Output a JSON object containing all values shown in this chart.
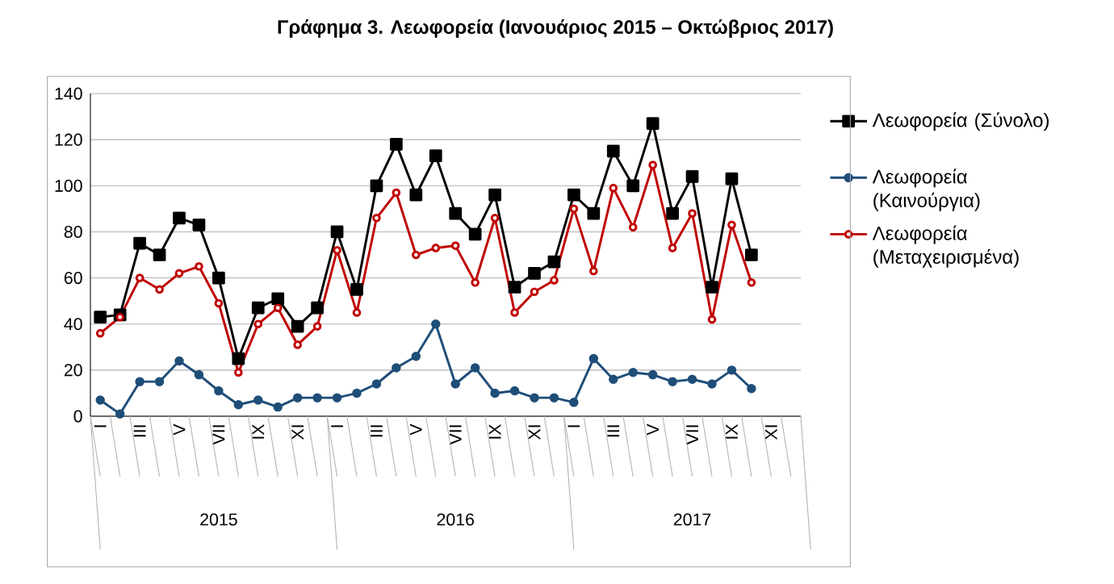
{
  "chart_data": {
    "type": "line",
    "title": "Γράφημα 3. Λεωφορεία (Ιανουάριος 2015 – Οκτώβριος 2017)",
    "categories": [
      "I",
      null,
      "III",
      null,
      "V",
      null,
      "VII",
      null,
      "IX",
      null,
      "XI",
      null,
      "I",
      null,
      "III",
      null,
      "V",
      null,
      "VII",
      null,
      "IX",
      null,
      "XI",
      null,
      "I",
      null,
      "III",
      null,
      "V",
      null,
      "VII",
      null,
      "IX",
      null,
      "XI",
      null
    ],
    "annotations": [
      "2015",
      "2016",
      "2017"
    ],
    "series": [
      {
        "name": "Λεωφορεία (Σύνολο)",
        "color": "#000000",
        "marker": "square",
        "values": [
          43,
          44,
          75,
          70,
          86,
          83,
          60,
          25,
          47,
          51,
          39,
          47,
          80,
          55,
          100,
          118,
          96,
          113,
          88,
          79,
          96,
          56,
          62,
          67,
          96,
          88,
          115,
          100,
          127,
          88,
          104,
          56,
          103,
          70,
          null,
          null
        ]
      },
      {
        "name": "Λεωφορεία (Καινούργια)",
        "color": "#1f4e79",
        "marker": "circle",
        "values": [
          7,
          1,
          15,
          15,
          24,
          18,
          11,
          5,
          7,
          4,
          8,
          8,
          8,
          10,
          14,
          21,
          26,
          40,
          14,
          21,
          10,
          11,
          8,
          8,
          6,
          25,
          16,
          19,
          18,
          15,
          16,
          14,
          20,
          12,
          null,
          null
        ]
      },
      {
        "name": "Λεωφορεία (Μεταχειρισμένα)",
        "color": "#c00000",
        "marker": "circle_open",
        "values": [
          36,
          43,
          60,
          55,
          62,
          65,
          49,
          19,
          40,
          47,
          31,
          39,
          72,
          45,
          86,
          97,
          70,
          73,
          74,
          58,
          86,
          45,
          54,
          59,
          90,
          63,
          99,
          82,
          109,
          73,
          88,
          42,
          83,
          58,
          null,
          null
        ]
      }
    ],
    "ylim": [
      0,
      140
    ],
    "yticks": [
      0,
      20,
      40,
      60,
      80,
      100,
      120,
      140
    ],
    "grid": "y",
    "legend": "right",
    "line_style": "solid"
  }
}
